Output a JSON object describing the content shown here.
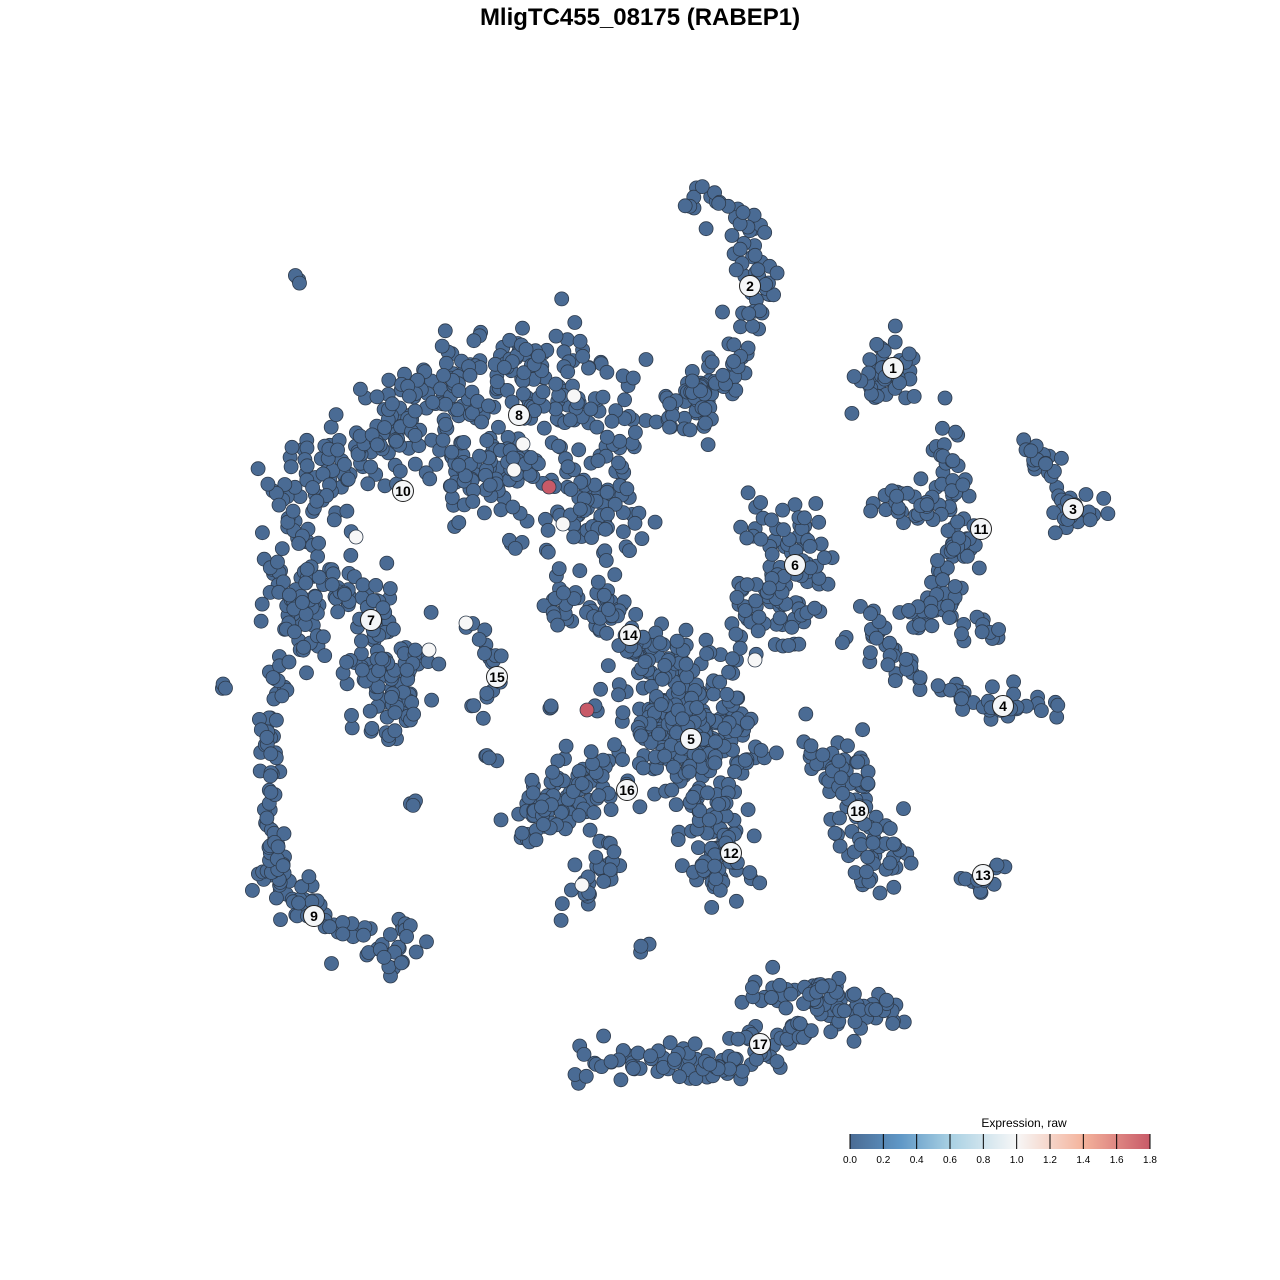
{
  "chart_data": {
    "type": "scatter",
    "title": "MligTC455_08175 (RABEP1)",
    "xlabel": "",
    "ylabel": "",
    "grid": false,
    "axes_visible": false,
    "base_value": 0.0,
    "legend": {
      "title": "Expression, raw",
      "placement": "bottom-right",
      "ticks": [
        "0.0",
        "0.2",
        "0.4",
        "0.6",
        "0.8",
        "1.0",
        "1.2",
        "1.4",
        "1.6",
        "1.8"
      ],
      "range": [
        0,
        1.8
      ],
      "colors": [
        {
          "value": 0.0,
          "color": "#4a6b94"
        },
        {
          "value": 0.3,
          "color": "#5f97c6"
        },
        {
          "value": 0.6,
          "color": "#a8d0e3"
        },
        {
          "value": 1.0,
          "color": "#f7f7f7"
        },
        {
          "value": 1.4,
          "color": "#f4b39c"
        },
        {
          "value": 1.8,
          "color": "#c85a68"
        }
      ]
    },
    "cluster_labels": [
      {
        "label": "1",
        "x": 25.3,
        "y": 27.2
      },
      {
        "label": "2",
        "x": 11.0,
        "y": 35.4
      },
      {
        "label": "3",
        "x": 43.3,
        "y": 13.1
      },
      {
        "label": "4",
        "x": 36.3,
        "y": -6.6
      },
      {
        "label": "5",
        "x": 5.1,
        "y": -9.9
      },
      {
        "label": "6",
        "x": 15.5,
        "y": 7.5
      },
      {
        "label": "7",
        "x": -26.9,
        "y": 2.0
      },
      {
        "label": "8",
        "x": -12.1,
        "y": 22.5
      },
      {
        "label": "9",
        "x": -32.6,
        "y": -27.6
      },
      {
        "label": "10",
        "x": -23.7,
        "y": 14.9
      },
      {
        "label": "11",
        "x": 34.1,
        "y": 11.1
      },
      {
        "label": "12",
        "x": 9.1,
        "y": -21.3
      },
      {
        "label": "13",
        "x": 34.3,
        "y": -23.5
      },
      {
        "label": "14",
        "x": -1.0,
        "y": 0.5
      },
      {
        "label": "15",
        "x": -14.3,
        "y": -3.7
      },
      {
        "label": "16",
        "x": -1.3,
        "y": -15.0
      },
      {
        "label": "17",
        "x": 12.0,
        "y": -40.4
      },
      {
        "label": "18",
        "x": 21.8,
        "y": -17.1
      }
    ],
    "clusters": [
      {
        "path": [
          [
            5,
            44
          ],
          [
            10,
            42.5
          ],
          [
            12.5,
            35
          ],
          [
            10,
            30
          ],
          [
            7,
            26
          ],
          [
            6,
            23
          ],
          [
            2.5,
            22.5
          ]
        ],
        "spread": 1.5,
        "n": 130
      },
      {
        "path": [
          [
            24.5,
            28
          ],
          [
            24,
            25.5
          ]
        ],
        "spread": 1.8,
        "n": 45
      },
      {
        "path": [
          [
            39,
            19
          ],
          [
            41,
            17
          ],
          [
            43,
            13
          ],
          [
            46.5,
            12.2
          ]
        ],
        "spread": 1,
        "n": 35
      },
      {
        "path": [
          [
            43,
            13
          ],
          [
            41,
            10.5
          ]
        ],
        "spread": 0.8,
        "n": 8
      },
      {
        "path": [
          [
            30,
            20
          ],
          [
            31.5,
            14
          ],
          [
            32,
            9
          ],
          [
            30.5,
            4
          ],
          [
            27.5,
            2.5
          ]
        ],
        "spread": 1.3,
        "n": 100
      },
      {
        "path": [
          [
            24,
            14
          ],
          [
            30,
            13
          ]
        ],
        "spread": 1,
        "n": 25
      },
      {
        "path": [
          [
            32,
            1.5
          ],
          [
            36,
            1
          ]
        ],
        "spread": 0.8,
        "n": 12
      },
      {
        "path": [
          [
            22,
            3.5
          ],
          [
            24,
            -1
          ],
          [
            28,
            -4
          ],
          [
            34,
            -6.5
          ],
          [
            41.5,
            -7
          ]
        ],
        "spread": 1,
        "n": 65
      },
      {
        "path": [
          [
            12,
            11
          ],
          [
            16,
            10
          ],
          [
            16,
            6
          ],
          [
            13,
            3
          ],
          [
            11,
            0
          ]
        ],
        "spread": 2.3,
        "n": 120
      },
      {
        "path": [
          [
            2,
            -6
          ],
          [
            5,
            -9
          ],
          [
            7,
            -12
          ]
        ],
        "spread": 3.5,
        "n": 320
      },
      {
        "path": [
          [
            -10,
            2.5
          ],
          [
            -4,
            4
          ],
          [
            -1,
            0
          ],
          [
            5,
            -2
          ]
        ],
        "spread": 1.5,
        "n": 80
      },
      {
        "path": [
          [
            -4,
            -13
          ],
          [
            -8,
            -17
          ],
          [
            -12,
            -18
          ]
        ],
        "spread": 2,
        "n": 100
      },
      {
        "path": [
          [
            -2,
            -20
          ],
          [
            -4,
            -24
          ],
          [
            -8,
            -27.5
          ]
        ],
        "spread": 1.2,
        "n": 30
      },
      {
        "path": [
          [
            6,
            -16
          ],
          [
            9,
            -21
          ],
          [
            7,
            -24
          ]
        ],
        "spread": 2,
        "n": 80
      },
      {
        "path": [
          [
            17,
            -11
          ],
          [
            22,
            -13
          ],
          [
            21,
            -19
          ],
          [
            26,
            -20
          ],
          [
            22,
            -25
          ]
        ],
        "spread": 1.8,
        "n": 100
      },
      {
        "path": [
          [
            32,
            -23.8
          ],
          [
            35,
            -24
          ],
          [
            37,
            -22.2
          ]
        ],
        "spread": 0.7,
        "n": 12
      },
      {
        "path": [
          [
            -6,
            -42.5
          ],
          [
            2,
            -42
          ],
          [
            8,
            -42.5
          ],
          [
            14,
            -40
          ],
          [
            19,
            -37
          ],
          [
            25,
            -37
          ]
        ],
        "spread": 1.3,
        "n": 140
      },
      {
        "path": [
          [
            10.5,
            -36
          ],
          [
            21,
            -35
          ]
        ],
        "spread": 1,
        "n": 40
      },
      {
        "path": [
          [
            -37,
            -23
          ],
          [
            -35,
            -26
          ],
          [
            -30,
            -29
          ],
          [
            -26,
            -32
          ],
          [
            -22,
            -29
          ]
        ],
        "spread": 1.5,
        "n": 80
      },
      {
        "path": [
          [
            -36,
            -1
          ],
          [
            -37,
            -10
          ],
          [
            -37,
            -19
          ],
          [
            -36.5,
            -23
          ]
        ],
        "spread": 0.7,
        "n": 60
      },
      {
        "path": [
          [
            -34,
            12
          ],
          [
            -31,
            17
          ],
          [
            -24,
            22
          ],
          [
            -17,
            26
          ],
          [
            -10,
            27.5
          ],
          [
            -4,
            25
          ],
          [
            -4,
            14
          ],
          [
            -5,
            10
          ]
        ],
        "spread": 3,
        "n": 380
      },
      {
        "path": [
          [
            -20,
            16
          ],
          [
            -10,
            18
          ]
        ],
        "spread": 3,
        "n": 120
      },
      {
        "path": [
          [
            -34,
            12
          ],
          [
            -35,
            3
          ],
          [
            -33,
            0
          ]
        ],
        "spread": 2,
        "n": 60
      },
      {
        "path": [
          [
            -34,
            6
          ],
          [
            -27,
            4
          ],
          [
            -25,
            -5
          ],
          [
            -24,
            -8
          ]
        ],
        "spread": 2,
        "n": 120
      },
      {
        "path": [
          [
            -29,
            -2
          ],
          [
            -22,
            -3
          ]
        ],
        "spread": 1.5,
        "n": 30
      },
      {
        "path": [
          [
            -17,
            2
          ],
          [
            -15,
            -1
          ],
          [
            -14.3,
            -4
          ],
          [
            -16.5,
            -7
          ]
        ],
        "spread": 0.7,
        "n": 20
      },
      {
        "path": [
          [
            -35,
            36.8
          ],
          [
            -34,
            35.8
          ]
        ],
        "spread": 0.2,
        "n": 3
      },
      {
        "path": [
          [
            -42,
            -4.8
          ],
          [
            -41.7,
            -4.5
          ]
        ],
        "spread": 0.2,
        "n": 3
      },
      {
        "path": [
          [
            -23,
            -16.5
          ]
        ],
        "spread": 0.4,
        "n": 4
      },
      {
        "path": [
          [
            -15,
            -12
          ]
        ],
        "spread": 0.5,
        "n": 4
      },
      {
        "path": [
          [
            -9,
            -6.7
          ]
        ],
        "spread": 0.3,
        "n": 3
      },
      {
        "path": [
          [
            0.5,
            -31
          ]
        ],
        "spread": 0.4,
        "n": 3
      },
      {
        "path": [
          [
            -12.5,
            9.5
          ]
        ],
        "spread": 0.5,
        "n": 4
      },
      {
        "path": [
          [
            20,
            -0.5
          ]
        ],
        "spread": 0.5,
        "n": 2
      },
      {
        "path": [
          [
            30.5,
            24.2
          ]
        ],
        "spread": 0,
        "n": 1
      }
    ],
    "expressing_points": [
      {
        "x": -6.6,
        "y": 24.4,
        "value": 1.0
      },
      {
        "x": -11.7,
        "y": 19.6,
        "value": 1.0
      },
      {
        "x": -12.6,
        "y": 17.0,
        "value": 1.0
      },
      {
        "x": -7.7,
        "y": 11.6,
        "value": 1.0
      },
      {
        "x": -28.4,
        "y": 10.3,
        "value": 1.0
      },
      {
        "x": -17.4,
        "y": 1.7,
        "value": 1.0
      },
      {
        "x": -21.1,
        "y": -1.0,
        "value": 1.0
      },
      {
        "x": -5.8,
        "y": -24.5,
        "value": 1.0
      },
      {
        "x": 11.5,
        "y": -2.0,
        "value": 1.0
      },
      {
        "x": -9.1,
        "y": 15.3,
        "value": 1.8
      },
      {
        "x": -5.3,
        "y": -7.0,
        "value": 1.8
      }
    ]
  }
}
